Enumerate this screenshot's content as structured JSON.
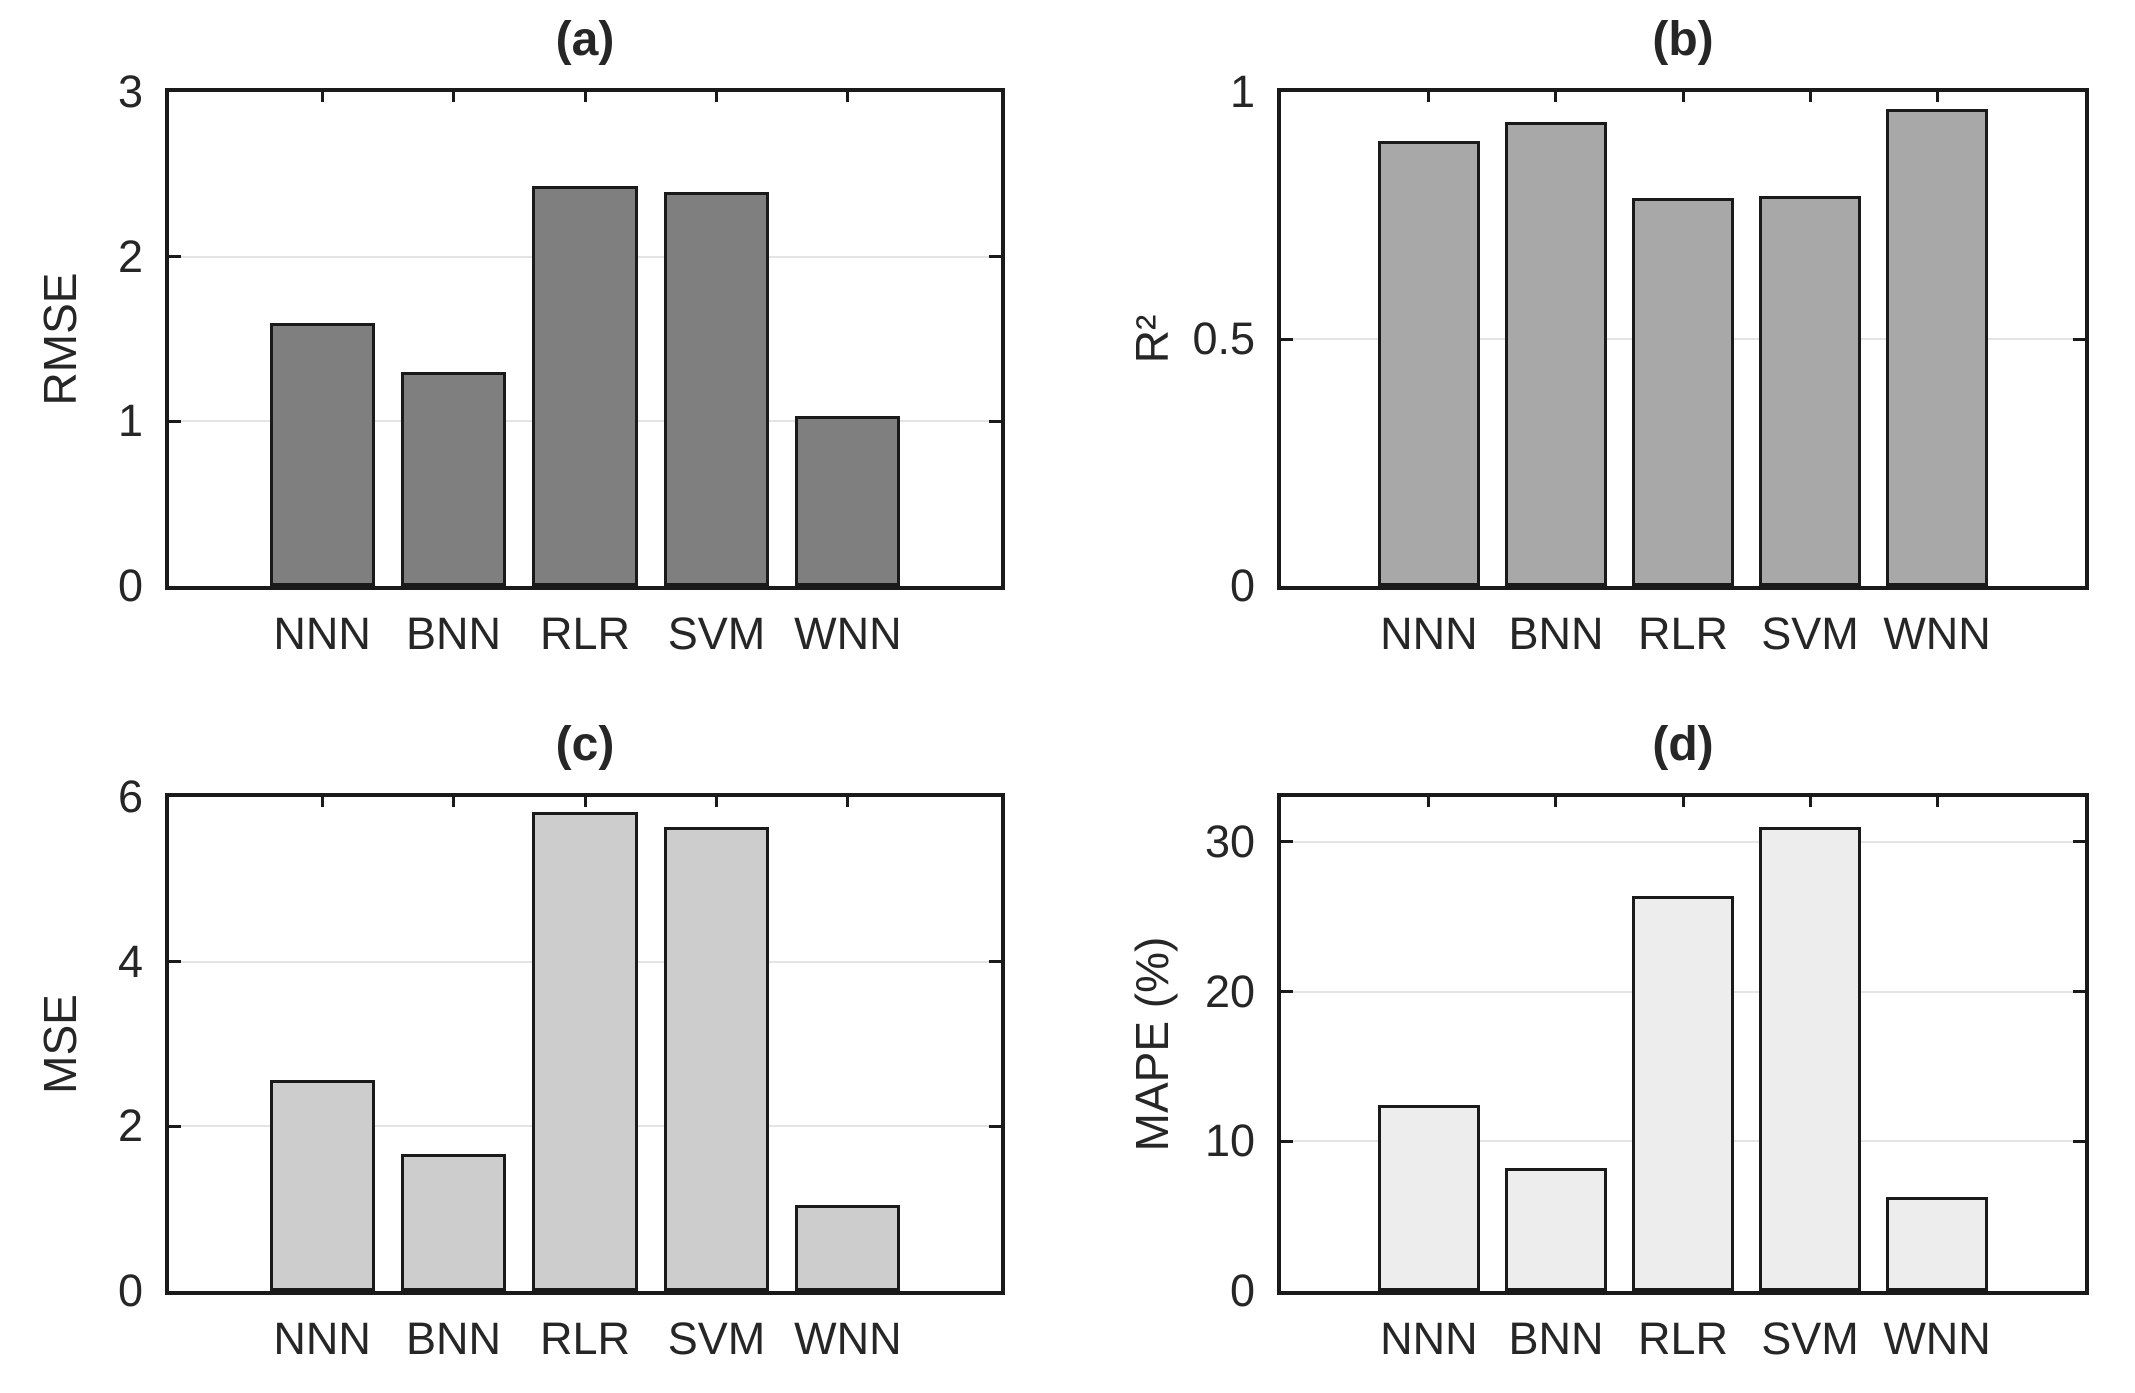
{
  "figure": {
    "background": "#ffffff",
    "frame_color": "#1a1a1a",
    "gridline_color": "#e4e4e4",
    "text_color": "#262626"
  },
  "chart_data": [
    {
      "type": "bar",
      "title": "(a)",
      "ylabel": "RMSE",
      "xlabel": "",
      "categories": [
        "NNN",
        "BNN",
        "RLR",
        "SVM",
        "WNN"
      ],
      "values": [
        1.6,
        1.3,
        2.43,
        2.39,
        1.03
      ],
      "ylim": [
        0,
        3
      ],
      "yticks": [
        0,
        1,
        2,
        3
      ],
      "ytick_labels": [
        "0",
        "1",
        "2",
        "3"
      ],
      "grid": "horizontal",
      "legend": "none",
      "bar_color": "#7f7f7f",
      "bar_edge_color": "#1a1a1a"
    },
    {
      "type": "bar",
      "title": "(b)",
      "ylabel": "R²",
      "xlabel": "",
      "categories": [
        "NNN",
        "BNN",
        "RLR",
        "SVM",
        "WNN"
      ],
      "values": [
        0.9,
        0.94,
        0.785,
        0.79,
        0.965
      ],
      "ylim": [
        0,
        1
      ],
      "yticks": [
        0,
        0.5,
        1
      ],
      "ytick_labels": [
        "0",
        "0.5",
        "1"
      ],
      "grid": "horizontal",
      "legend": "none",
      "bar_color": "#a8a8a8",
      "bar_edge_color": "#1a1a1a"
    },
    {
      "type": "bar",
      "title": "(c)",
      "ylabel": "MSE",
      "xlabel": "",
      "categories": [
        "NNN",
        "BNN",
        "RLR",
        "SVM",
        "WNN"
      ],
      "values": [
        2.56,
        1.67,
        5.82,
        5.63,
        1.05
      ],
      "ylim": [
        0,
        6
      ],
      "yticks": [
        0,
        2,
        4,
        6
      ],
      "ytick_labels": [
        "0",
        "2",
        "4",
        "6"
      ],
      "grid": "horizontal",
      "legend": "none",
      "bar_color": "#cdcdcd",
      "bar_edge_color": "#1a1a1a"
    },
    {
      "type": "bar",
      "title": "(d)",
      "ylabel": "MAPE (%)",
      "xlabel": "",
      "categories": [
        "NNN",
        "BNN",
        "RLR",
        "SVM",
        "WNN"
      ],
      "values": [
        12.4,
        8.2,
        26.4,
        31.0,
        6.3
      ],
      "ylim": [
        0,
        33
      ],
      "yticks": [
        0,
        10,
        20,
        30
      ],
      "ytick_labels": [
        "0",
        "10",
        "20",
        "30"
      ],
      "grid": "horizontal",
      "legend": "none",
      "bar_color": "#ededed",
      "bar_edge_color": "#1a1a1a"
    }
  ]
}
